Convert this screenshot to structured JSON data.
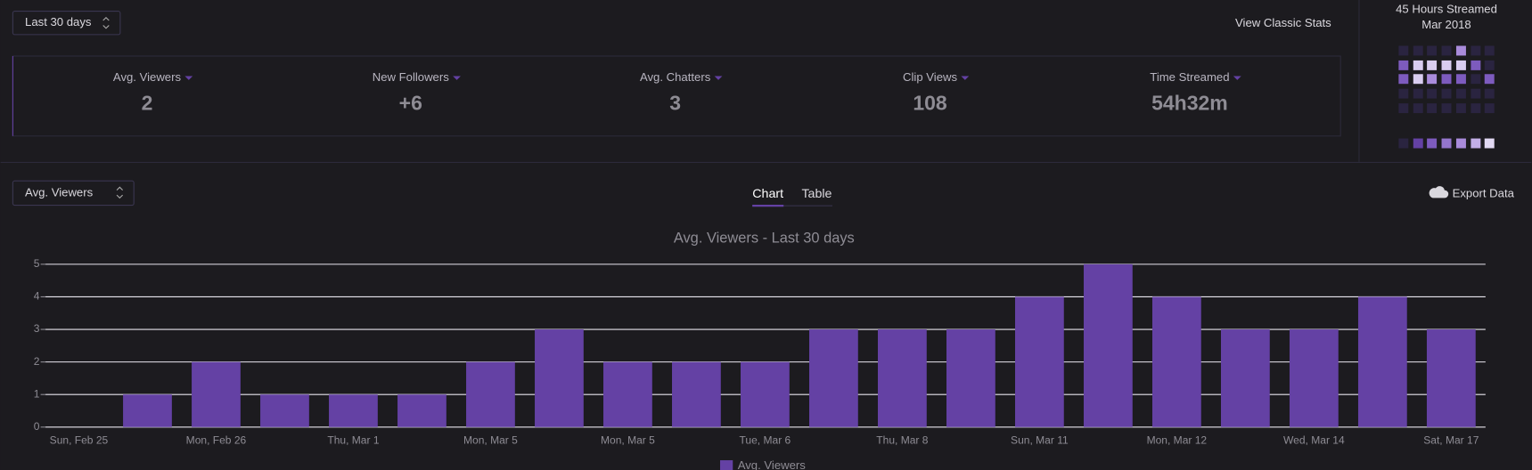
{
  "controls": {
    "range_select": "Last 30 days",
    "classic_stats": "View Classic Stats",
    "metric_select": "Avg. Viewers",
    "tabs": [
      "Chart",
      "Table"
    ],
    "export": "Export Data"
  },
  "stats": [
    {
      "label": "Avg. Viewers",
      "value": 2
    },
    {
      "label": "New Followers",
      "value": "+6"
    },
    {
      "label": "Avg. Chatters",
      "value": 3
    },
    {
      "label": "Clip Views",
      "value": 108
    },
    {
      "label": "Time Streamed",
      "value": "54h32m"
    }
  ],
  "calendar": {
    "title": "45 Hours Streamed",
    "month": "Mar 2018"
  },
  "chart_data": {
    "type": "bar",
    "title": "Avg. Viewers - Last 30 days",
    "categories": [
      "Sun, Feb 25",
      null,
      "Mon, Feb 26",
      null,
      "Thu, Mar 1",
      null,
      "Mon, Mar 5",
      null,
      "Mon, Mar 5",
      null,
      "Tue, Mar 6",
      null,
      "Thu, Mar 8",
      null,
      "Sun, Mar 11",
      null,
      "Mon, Mar 12",
      null,
      "Wed, Mar 14",
      null,
      "Sat, Mar 17"
    ],
    "series": [
      {
        "name": "Avg. Viewers",
        "color": "#6441a4",
        "values": [
          0,
          1,
          2,
          1,
          1,
          1,
          2,
          3,
          2,
          2,
          2,
          3,
          3,
          3,
          4,
          5,
          4,
          3,
          3,
          4,
          3
        ]
      }
    ],
    "ylim": [
      0,
      5
    ],
    "yticks": [
      0,
      1,
      2,
      3,
      4,
      5
    ],
    "grid": true,
    "legend": "bottom"
  }
}
